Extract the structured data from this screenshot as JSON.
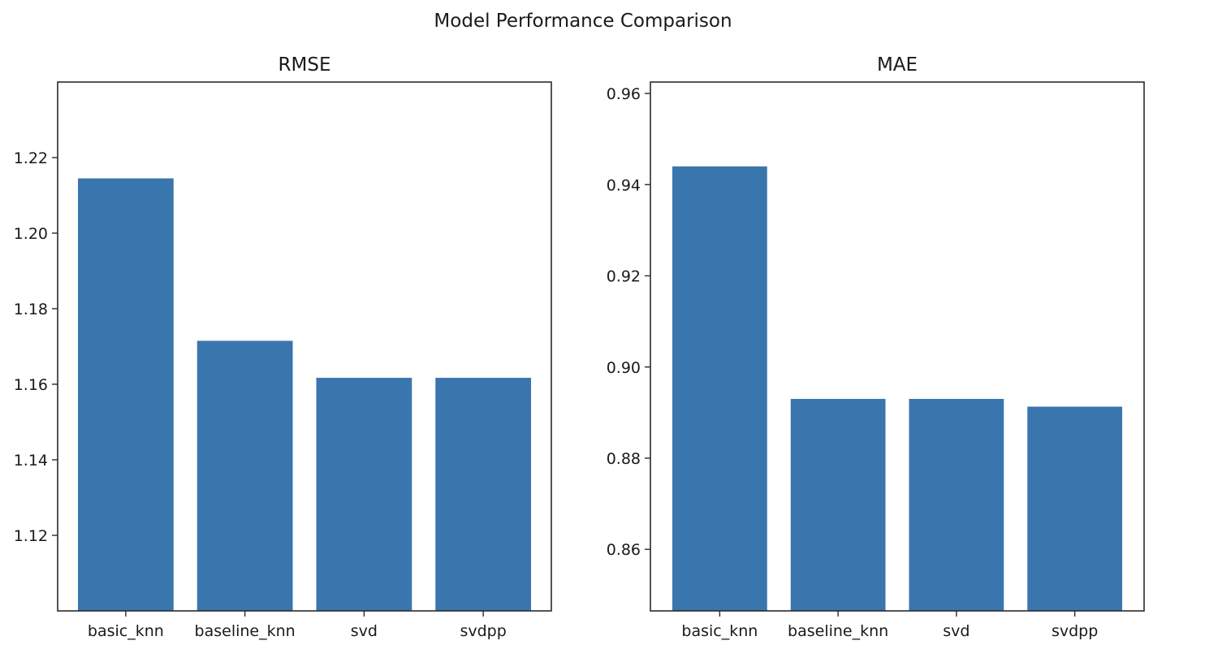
{
  "figure": {
    "title": "Model Performance Comparison"
  },
  "chart_data": [
    {
      "type": "bar",
      "title": "RMSE",
      "xlabel": "",
      "ylabel": "",
      "categories": [
        "basic_knn",
        "baseline_knn",
        "svd",
        "svdpp"
      ],
      "values": [
        1.2145,
        1.1715,
        1.1617,
        1.1617
      ],
      "ylim": [
        1.1,
        1.24
      ],
      "yticks": [
        1.12,
        1.14,
        1.16,
        1.18,
        1.2,
        1.22
      ],
      "ytick_labels": [
        "1.12",
        "1.14",
        "1.16",
        "1.18",
        "1.20",
        "1.22"
      ],
      "grid": false,
      "bar_color": "#3a76ae"
    },
    {
      "type": "bar",
      "title": "MAE",
      "xlabel": "",
      "ylabel": "",
      "categories": [
        "basic_knn",
        "baseline_knn",
        "svd",
        "svdpp"
      ],
      "values": [
        0.944,
        0.893,
        0.893,
        0.8913
      ],
      "ylim": [
        0.8465,
        0.9625
      ],
      "yticks": [
        0.86,
        0.88,
        0.9,
        0.92,
        0.94,
        0.96
      ],
      "ytick_labels": [
        "0.86",
        "0.88",
        "0.90",
        "0.92",
        "0.94",
        "0.96"
      ],
      "grid": false,
      "bar_color": "#3a76ae"
    }
  ]
}
